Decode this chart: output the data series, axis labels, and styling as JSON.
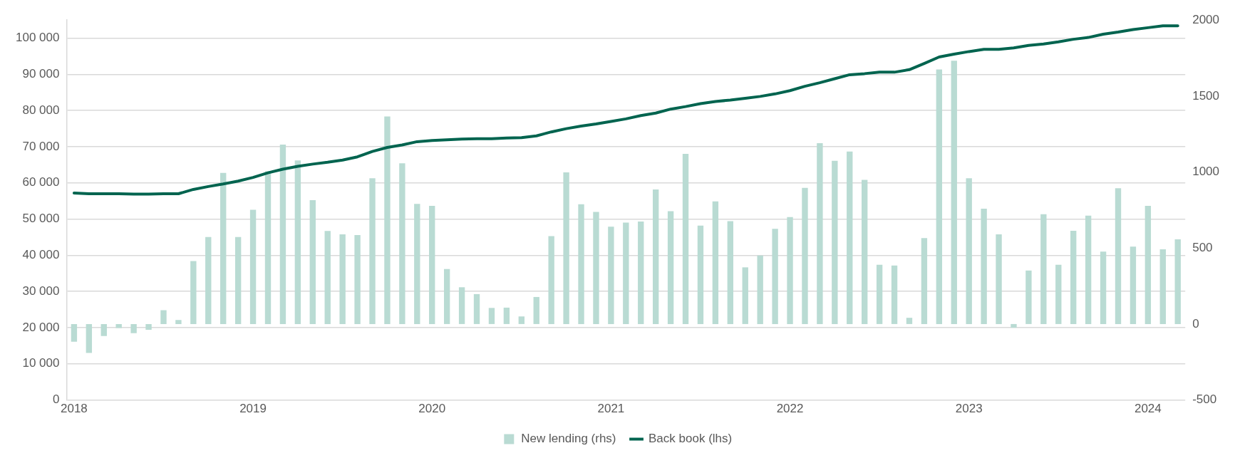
{
  "chart_data": {
    "type": "bar",
    "categories": [
      "2018",
      null,
      null,
      null,
      null,
      null,
      null,
      null,
      null,
      null,
      null,
      null,
      "2019",
      null,
      null,
      null,
      null,
      null,
      null,
      null,
      null,
      null,
      null,
      null,
      "2020",
      null,
      null,
      null,
      null,
      null,
      null,
      null,
      null,
      null,
      null,
      null,
      "2021",
      null,
      null,
      null,
      null,
      null,
      null,
      null,
      null,
      null,
      null,
      null,
      "2022",
      null,
      null,
      null,
      null,
      null,
      null,
      null,
      null,
      null,
      null,
      null,
      "2023",
      null,
      null,
      null,
      null,
      null,
      null,
      null,
      null,
      null,
      null,
      null,
      "2024",
      null,
      null
    ],
    "series": [
      {
        "name": "New lending (rhs)",
        "axis": "y2",
        "color": "#b9dbd3",
        "values": [
          -116,
          -190,
          -79,
          -26,
          -60,
          -38,
          91,
          27,
          414,
          573,
          995,
          573,
          752,
          1005,
          1181,
          1077,
          815,
          612,
          590,
          585,
          959,
          1366,
          1058,
          791,
          778,
          362,
          242,
          197,
          106,
          108,
          50,
          178,
          578,
          998,
          788,
          738,
          641,
          668,
          674,
          885,
          742,
          1120,
          648,
          807,
          677,
          373,
          451,
          627,
          704,
          896,
          1190,
          1074,
          1135,
          949,
          390,
          385,
          41,
          566,
          1675,
          1733,
          959,
          759,
          590,
          -24,
          352,
          723,
          390,
          614,
          713,
          477,
          894,
          509,
          778,
          492,
          557
        ]
      },
      {
        "name": "Back book (lhs)",
        "type": "line",
        "color": "#00644f",
        "values": [
          57200,
          57000,
          57000,
          57000,
          56900,
          56900,
          57000,
          57000,
          58200,
          59000,
          59700,
          60500,
          61500,
          62800,
          63800,
          64600,
          65200,
          65700,
          66300,
          67200,
          68700,
          69800,
          70500,
          71400,
          71700,
          71900,
          72100,
          72200,
          72200,
          72400,
          72500,
          73000,
          74100,
          75000,
          75700,
          76300,
          77000,
          77700,
          78600,
          79300,
          80400,
          81100,
          81900,
          82500,
          82900,
          83400,
          83900,
          84600,
          85500,
          86700,
          87700,
          88800,
          89900,
          90200,
          90600,
          90600,
          91300,
          93000,
          94800,
          95600,
          96300,
          96900,
          96900,
          97300,
          98000,
          98400,
          99000,
          99700,
          100200,
          101100,
          101700,
          102400,
          102900,
          103400,
          103400
        ]
      }
    ],
    "ylim": [
      0,
      105000
    ],
    "yticks": [
      0,
      {
        "value": 10000,
        "label": "10 000"
      },
      {
        "value": 20000,
        "label": "20 000"
      },
      {
        "value": 30000,
        "label": "30 000"
      },
      {
        "value": 40000,
        "label": "40 000"
      },
      {
        "value": 50000,
        "label": "50 000"
      },
      {
        "value": 60000,
        "label": "60 000"
      },
      {
        "value": 70000,
        "label": "70 000"
      },
      {
        "value": 80000,
        "label": "80 000"
      },
      {
        "value": 90000,
        "label": "90 000"
      },
      {
        "value": 100000,
        "label": "100 000"
      }
    ],
    "y2lim": [
      -500,
      2000
    ],
    "y2ticks": [
      -500,
      0,
      500,
      1000,
      1500,
      2000
    ],
    "grid": "y",
    "legend": "bottom",
    "marker": "none",
    "line_style": "solid"
  }
}
